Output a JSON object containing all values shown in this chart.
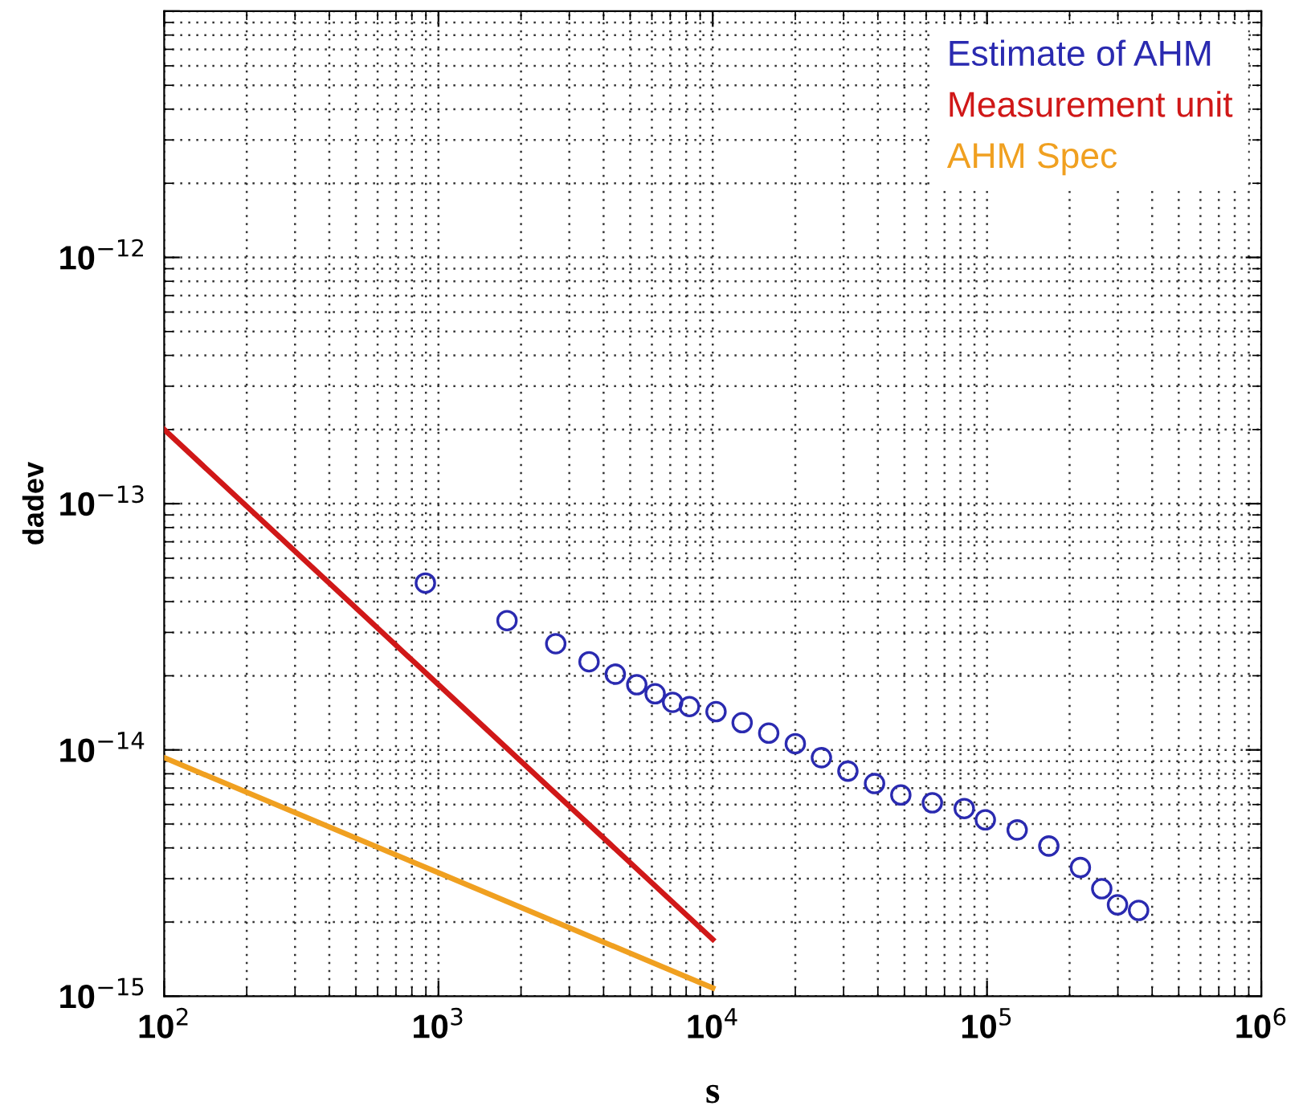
{
  "chart_data": {
    "type": "scatter",
    "xlabel": "s",
    "ylabel": "dadev",
    "log": "xy",
    "grid": true,
    "legend": "top right",
    "xlim": [
      100,
      1000000
    ],
    "ylim": [
      1e-15,
      1e-11
    ],
    "xticks": [
      {
        "value": 100,
        "label": "10$^{2}$"
      },
      {
        "value": 1000,
        "label": "10$^{3}$"
      },
      {
        "value": 10000,
        "label": "10$^{4}$"
      },
      {
        "value": 100000,
        "label": "10$^{5}$"
      },
      {
        "value": 1000000,
        "label": "10$^{6}$"
      }
    ],
    "yticks": [
      {
        "value": 1e-15,
        "label": "10$^{−15}$"
      },
      {
        "value": 1e-14,
        "label": "10$^{−14}$"
      },
      {
        "value": 1e-13,
        "label": "10$^{−13}$"
      },
      {
        "value": 1e-12,
        "label": "10$^{−12}$"
      },
      {
        "value": 1e-11,
        "label": null
      }
    ],
    "series": [
      {
        "name": "Estimate of AHM",
        "marker": "circle",
        "color": "#2a2ab0",
        "x": [
          896,
          1778,
          2677,
          3540,
          4413,
          5285,
          6166,
          7140,
          8220,
          10280,
          12800,
          16000,
          20000,
          24900,
          31100,
          38900,
          48500,
          63200,
          82600,
          98600,
          128800,
          168000,
          219000,
          262000,
          299000,
          357000
        ],
        "values": [
          4.76e-14,
          3.35e-14,
          2.7e-14,
          2.28e-14,
          2.03e-14,
          1.84e-14,
          1.69e-14,
          1.56e-14,
          1.5e-14,
          1.43e-14,
          1.29e-14,
          1.17e-14,
          1.06e-14,
          9.3e-15,
          8.2e-15,
          7.3e-15,
          6.56e-15,
          6.1e-15,
          5.78e-15,
          5.2e-15,
          4.73e-15,
          4.07e-15,
          3.33e-15,
          2.73e-15,
          2.35e-15,
          2.23e-15
        ]
      },
      {
        "name": "Measurement unit",
        "type": "line",
        "marker": "none",
        "color": "#d01818",
        "x": [
          100,
          1000,
          10000
        ],
        "values": [
          2e-13,
          1.84e-14,
          1.7e-15
        ]
      },
      {
        "name": "AHM Spec",
        "type": "line",
        "marker": "none",
        "color": "#f0a020",
        "x": [
          100,
          1000,
          10000
        ],
        "values": [
          9.3e-15,
          3.17e-15,
          1.08e-15
        ]
      }
    ]
  }
}
